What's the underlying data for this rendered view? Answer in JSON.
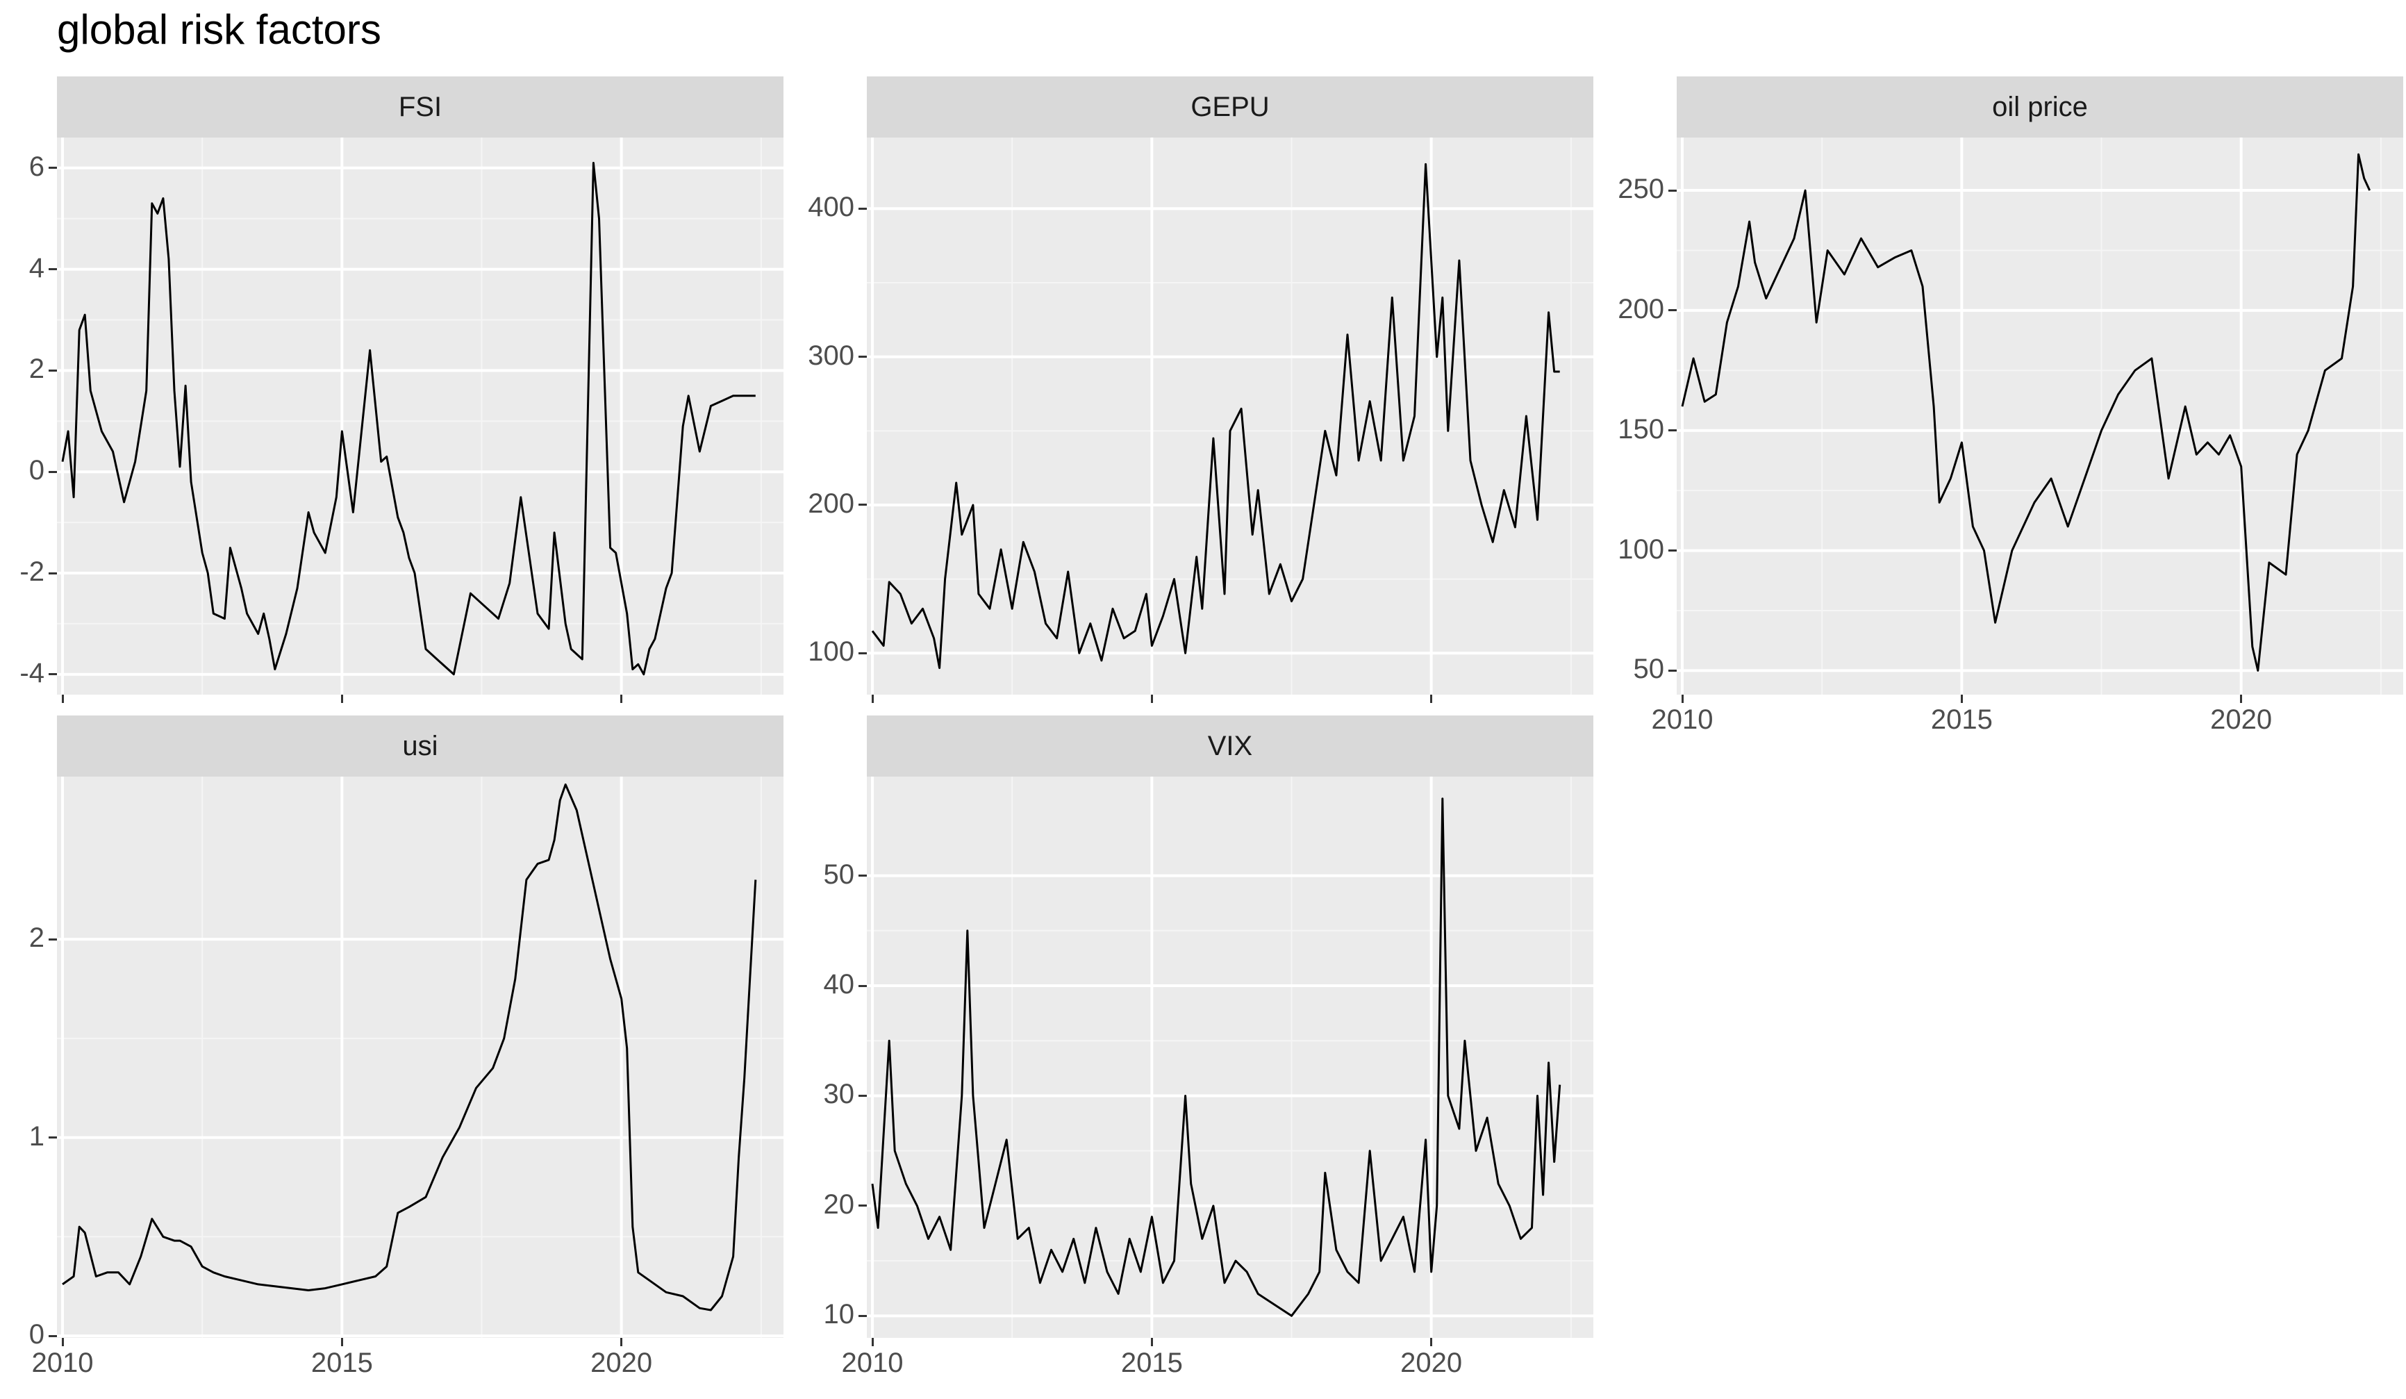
{
  "chart_data": {
    "title": "global risk factors",
    "type": "line",
    "x_ticks": [
      2010,
      2015,
      2020
    ],
    "xlim": [
      2009.9,
      2022.9
    ],
    "panels": [
      {
        "name": "FSI",
        "ylim": [
          -4.4,
          6.6
        ],
        "yticks": [
          -4,
          -2,
          0,
          2,
          4,
          6
        ],
        "ytick_labels": [
          "-4",
          "-2",
          "0",
          "2",
          "4",
          "6"
        ],
        "x": [
          2010.0,
          2010.1,
          2010.2,
          2010.3,
          2010.4,
          2010.5,
          2010.7,
          2010.9,
          2011.1,
          2011.3,
          2011.5,
          2011.6,
          2011.7,
          2011.8,
          2011.9,
          2012.0,
          2012.1,
          2012.2,
          2012.3,
          2012.5,
          2012.6,
          2012.7,
          2012.9,
          2013.0,
          2013.2,
          2013.3,
          2013.4,
          2013.5,
          2013.6,
          2013.7,
          2013.8,
          2014.0,
          2014.2,
          2014.4,
          2014.5,
          2014.7,
          2014.9,
          2015.0,
          2015.2,
          2015.5,
          2015.7,
          2015.8,
          2016.0,
          2016.1,
          2016.2,
          2016.3,
          2016.5,
          2016.7,
          2017.0,
          2017.3,
          2017.5,
          2017.8,
          2018.0,
          2018.2,
          2018.5,
          2018.7,
          2018.8,
          2019.0,
          2019.1,
          2019.3,
          2019.5,
          2019.6,
          2019.8,
          2019.9,
          2020.1,
          2020.2,
          2020.3,
          2020.4,
          2020.5,
          2020.6,
          2020.8,
          2020.9,
          2021.1,
          2021.2,
          2021.4,
          2021.6,
          2021.8,
          2022.0,
          2022.1,
          2022.2,
          2022.3,
          2022.4
        ],
        "y": [
          0.2,
          0.8,
          -0.5,
          2.8,
          3.1,
          1.6,
          0.8,
          0.4,
          -0.6,
          0.2,
          1.6,
          5.3,
          5.1,
          5.4,
          4.2,
          1.6,
          0.1,
          1.7,
          -0.2,
          -1.6,
          -2.0,
          -2.8,
          -2.9,
          -1.5,
          -2.3,
          -2.8,
          -3.0,
          -3.2,
          -2.8,
          -3.3,
          -3.9,
          -3.2,
          -2.3,
          -0.8,
          -1.2,
          -1.6,
          -0.5,
          0.8,
          -0.8,
          2.4,
          0.2,
          0.3,
          -0.9,
          -1.2,
          -1.7,
          -2.0,
          -3.5,
          -3.7,
          -4.0,
          -2.4,
          -2.6,
          -2.9,
          -2.2,
          -0.5,
          -2.8,
          -3.1,
          -1.2,
          -3.0,
          -3.5,
          -3.7,
          6.1,
          5.0,
          -1.5,
          -1.6,
          -2.8,
          -3.9,
          -3.8,
          -4.0,
          -3.5,
          -3.3,
          -2.3,
          -2.0,
          0.9,
          1.5,
          0.4,
          1.3,
          1.4,
          1.5,
          1.5,
          1.5,
          1.5,
          1.5
        ]
      },
      {
        "name": "GEPU",
        "ylim": [
          72,
          448
        ],
        "yticks": [
          100,
          200,
          300,
          400
        ],
        "ytick_labels": [
          "100",
          "200",
          "300",
          "400"
        ],
        "x": [
          2010.0,
          2010.2,
          2010.3,
          2010.5,
          2010.7,
          2010.9,
          2011.1,
          2011.2,
          2011.3,
          2011.5,
          2011.6,
          2011.8,
          2011.9,
          2012.1,
          2012.3,
          2012.5,
          2012.7,
          2012.9,
          2013.1,
          2013.3,
          2013.5,
          2013.7,
          2013.9,
          2014.1,
          2014.3,
          2014.5,
          2014.7,
          2014.9,
          2015.0,
          2015.2,
          2015.4,
          2015.6,
          2015.8,
          2015.9,
          2016.1,
          2016.3,
          2016.4,
          2016.6,
          2016.8,
          2016.9,
          2017.1,
          2017.3,
          2017.5,
          2017.7,
          2017.9,
          2018.1,
          2018.3,
          2018.5,
          2018.7,
          2018.9,
          2019.1,
          2019.3,
          2019.5,
          2019.7,
          2019.9,
          2020.1,
          2020.2,
          2020.3,
          2020.5,
          2020.7,
          2020.9,
          2021.1,
          2021.3,
          2021.5,
          2021.7,
          2021.9,
          2022.1,
          2022.2,
          2022.3
        ],
        "y": [
          115,
          105,
          148,
          140,
          120,
          130,
          110,
          90,
          150,
          215,
          180,
          200,
          140,
          130,
          170,
          130,
          175,
          155,
          120,
          110,
          155,
          100,
          120,
          95,
          130,
          110,
          115,
          140,
          105,
          125,
          150,
          100,
          165,
          130,
          245,
          140,
          250,
          265,
          180,
          210,
          140,
          160,
          135,
          150,
          200,
          250,
          220,
          315,
          230,
          270,
          230,
          340,
          230,
          260,
          430,
          300,
          340,
          250,
          365,
          230,
          200,
          175,
          210,
          185,
          260,
          190,
          330,
          290,
          290
        ]
      },
      {
        "name": "oil price",
        "ylim": [
          40,
          272
        ],
        "yticks": [
          50,
          100,
          150,
          200,
          250
        ],
        "ytick_labels": [
          "50",
          "100",
          "150",
          "200",
          "250"
        ],
        "x": [
          2010.0,
          2010.2,
          2010.4,
          2010.6,
          2010.8,
          2011.0,
          2011.2,
          2011.3,
          2011.5,
          2011.7,
          2012.0,
          2012.2,
          2012.4,
          2012.6,
          2012.9,
          2013.2,
          2013.5,
          2013.8,
          2014.1,
          2014.3,
          2014.5,
          2014.6,
          2014.8,
          2015.0,
          2015.2,
          2015.4,
          2015.6,
          2015.9,
          2016.1,
          2016.3,
          2016.6,
          2016.9,
          2017.2,
          2017.5,
          2017.8,
          2018.1,
          2018.4,
          2018.7,
          2018.8,
          2019.0,
          2019.2,
          2019.4,
          2019.6,
          2019.8,
          2020.0,
          2020.2,
          2020.3,
          2020.5,
          2020.8,
          2021.0,
          2021.2,
          2021.5,
          2021.8,
          2022.0,
          2022.1,
          2022.2,
          2022.3
        ],
        "y": [
          160,
          180,
          162,
          165,
          195,
          210,
          237,
          220,
          205,
          215,
          230,
          250,
          195,
          225,
          215,
          230,
          218,
          222,
          225,
          210,
          160,
          120,
          130,
          145,
          110,
          100,
          70,
          100,
          110,
          120,
          130,
          110,
          130,
          150,
          165,
          175,
          180,
          130,
          140,
          160,
          140,
          145,
          140,
          148,
          135,
          60,
          50,
          95,
          90,
          140,
          150,
          175,
          180,
          210,
          265,
          255,
          250
        ]
      },
      {
        "name": "usi",
        "ylim": [
          -0.01,
          2.82
        ],
        "yticks": [
          0,
          1,
          2
        ],
        "ytick_labels": [
          "0",
          "1",
          "2"
        ],
        "x": [
          2010.0,
          2010.2,
          2010.3,
          2010.4,
          2010.6,
          2010.8,
          2011.0,
          2011.2,
          2011.4,
          2011.6,
          2011.8,
          2012.0,
          2012.1,
          2012.3,
          2012.5,
          2012.7,
          2012.9,
          2013.2,
          2013.5,
          2013.8,
          2014.1,
          2014.4,
          2014.7,
          2015.0,
          2015.3,
          2015.6,
          2015.8,
          2016.0,
          2016.2,
          2016.5,
          2016.8,
          2017.1,
          2017.4,
          2017.7,
          2017.9,
          2018.1,
          2018.3,
          2018.5,
          2018.7,
          2018.8,
          2018.9,
          2019.0,
          2019.2,
          2019.4,
          2019.6,
          2019.8,
          2020.0,
          2020.1,
          2020.2,
          2020.3,
          2020.5,
          2020.8,
          2021.1,
          2021.4,
          2021.6,
          2021.8,
          2022.0,
          2022.1,
          2022.2,
          2022.3,
          2022.4
        ],
        "y": [
          0.26,
          0.3,
          0.55,
          0.52,
          0.3,
          0.32,
          0.32,
          0.26,
          0.4,
          0.59,
          0.5,
          0.48,
          0.48,
          0.45,
          0.35,
          0.32,
          0.3,
          0.28,
          0.26,
          0.25,
          0.24,
          0.23,
          0.24,
          0.26,
          0.28,
          0.3,
          0.35,
          0.62,
          0.65,
          0.7,
          0.9,
          1.05,
          1.25,
          1.35,
          1.5,
          1.8,
          2.3,
          2.38,
          2.4,
          2.5,
          2.7,
          2.78,
          2.65,
          2.4,
          2.15,
          1.9,
          1.7,
          1.45,
          0.55,
          0.32,
          0.28,
          0.22,
          0.2,
          0.14,
          0.13,
          0.2,
          0.4,
          0.9,
          1.3,
          1.8,
          2.3
        ]
      },
      {
        "name": "VIX",
        "ylim": [
          8,
          59
        ],
        "yticks": [
          10,
          20,
          30,
          40,
          50
        ],
        "ytick_labels": [
          "10",
          "20",
          "30",
          "40",
          "50"
        ],
        "x": [
          2010.0,
          2010.1,
          2010.3,
          2010.4,
          2010.6,
          2010.8,
          2011.0,
          2011.2,
          2011.4,
          2011.6,
          2011.7,
          2011.8,
          2012.0,
          2012.2,
          2012.4,
          2012.6,
          2012.8,
          2013.0,
          2013.2,
          2013.4,
          2013.6,
          2013.8,
          2014.0,
          2014.2,
          2014.4,
          2014.6,
          2014.8,
          2015.0,
          2015.2,
          2015.4,
          2015.6,
          2015.7,
          2015.9,
          2016.1,
          2016.3,
          2016.5,
          2016.7,
          2016.9,
          2017.2,
          2017.5,
          2017.8,
          2018.0,
          2018.1,
          2018.3,
          2018.5,
          2018.7,
          2018.9,
          2019.1,
          2019.3,
          2019.5,
          2019.7,
          2019.9,
          2020.0,
          2020.1,
          2020.2,
          2020.3,
          2020.5,
          2020.6,
          2020.8,
          2021.0,
          2021.2,
          2021.4,
          2021.6,
          2021.8,
          2021.9,
          2022.0,
          2022.1,
          2022.2,
          2022.3
        ],
        "y": [
          22,
          18,
          35,
          25,
          22,
          20,
          17,
          19,
          16,
          30,
          45,
          30,
          18,
          22,
          26,
          17,
          18,
          13,
          16,
          14,
          17,
          13,
          18,
          14,
          12,
          17,
          14,
          19,
          13,
          15,
          30,
          22,
          17,
          20,
          13,
          15,
          14,
          12,
          11,
          10,
          12,
          14,
          23,
          16,
          14,
          13,
          25,
          15,
          17,
          19,
          14,
          26,
          14,
          20,
          57,
          30,
          27,
          35,
          25,
          28,
          22,
          20,
          17,
          18,
          30,
          21,
          33,
          24,
          31
        ]
      }
    ]
  }
}
